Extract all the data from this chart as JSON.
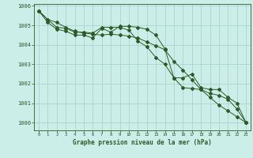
{
  "title": "Graphe pression niveau de la mer (hPa)",
  "background_color": "#cceee8",
  "grid_color": "#aad4ce",
  "line_color": "#2d5a27",
  "x_values": [
    0,
    1,
    2,
    3,
    4,
    5,
    6,
    7,
    8,
    9,
    10,
    11,
    12,
    13,
    14,
    15,
    16,
    17,
    18,
    19,
    20,
    21,
    22,
    23
  ],
  "x_labels": [
    "0",
    "1",
    "2",
    "3",
    "4",
    "5",
    "6",
    "7",
    "8",
    "9",
    "10",
    "11",
    "12",
    "13",
    "14",
    "15",
    "16",
    "17",
    "18",
    "19",
    "20",
    "21",
    "22",
    "23"
  ],
  "line1": [
    1005.75,
    1005.3,
    1004.9,
    1004.85,
    1004.65,
    1004.65,
    1004.6,
    1004.9,
    1004.9,
    1004.9,
    1004.75,
    1004.2,
    1003.9,
    1003.35,
    1003.0,
    1002.3,
    1001.8,
    1001.75,
    1001.7,
    1001.5,
    1001.4,
    1001.2,
    1000.7,
    1000.0
  ],
  "line2": [
    1005.75,
    1005.15,
    1004.8,
    1004.7,
    1004.5,
    1004.5,
    1004.35,
    1004.85,
    1004.65,
    1004.95,
    1004.95,
    1004.9,
    1004.8,
    1004.5,
    1003.8,
    1002.3,
    1002.3,
    1002.5,
    1001.8,
    1001.7,
    1001.7,
    1001.3,
    1001.0,
    1000.0
  ],
  "line3": [
    1005.75,
    1005.3,
    1005.15,
    1004.9,
    1004.7,
    1004.6,
    1004.55,
    1004.5,
    1004.55,
    1004.5,
    1004.45,
    1004.35,
    1004.15,
    1003.95,
    1003.75,
    1003.15,
    1002.7,
    1002.2,
    1001.7,
    1001.3,
    1000.9,
    1000.6,
    1000.3,
    1000.0
  ],
  "ylim": [
    999.6,
    1006.1
  ],
  "yticks": [
    1000,
    1001,
    1002,
    1003,
    1004,
    1005,
    1006
  ]
}
